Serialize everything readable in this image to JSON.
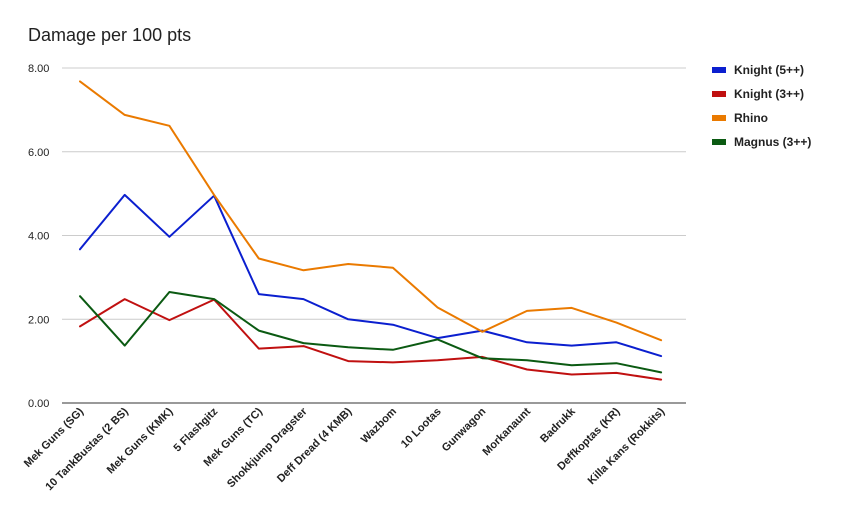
{
  "chart_data": {
    "type": "line",
    "title": "Damage per 100 pts",
    "xlabel": "",
    "ylabel": "",
    "ylim": [
      0,
      8
    ],
    "yticks": [
      "0.00",
      "2.00",
      "4.00",
      "6.00",
      "8.00"
    ],
    "ytick_values": [
      0,
      2,
      4,
      6,
      8
    ],
    "grid": true,
    "legend_position": "right",
    "categories": [
      "Mek Guns (SG)",
      "10 TankBustas (2 BS)",
      "Mek Guns (KMK)",
      "5 Flashgitz",
      "Mek Guns (TC)",
      "Shokkjump Dragster",
      "Deff Dread (4 KMB)",
      "Wazbom",
      "10 Lootas",
      "Gunwagon",
      "Morkanaunt",
      "Badrukk",
      "Deffkoptas (KR)",
      "Killa Kans (Rokkits)"
    ],
    "series": [
      {
        "name": "Knight (5++)",
        "color": "#0b1fcf",
        "values": [
          3.67,
          4.97,
          3.97,
          4.95,
          2.6,
          2.48,
          2.0,
          1.87,
          1.55,
          1.73,
          1.45,
          1.37,
          1.45,
          1.12
        ]
      },
      {
        "name": "Knight (3++)",
        "color": "#c01010",
        "values": [
          1.83,
          2.48,
          1.98,
          2.47,
          1.3,
          1.36,
          1.0,
          0.97,
          1.02,
          1.1,
          0.8,
          0.68,
          0.72,
          0.56
        ]
      },
      {
        "name": "Rhino",
        "color": "#ea7a00",
        "values": [
          7.68,
          6.88,
          6.62,
          4.97,
          3.45,
          3.17,
          3.32,
          3.23,
          2.28,
          1.7,
          2.2,
          2.27,
          1.92,
          1.5
        ]
      },
      {
        "name": "Magnus (3++)",
        "color": "#0b5a12",
        "values": [
          2.55,
          1.37,
          2.65,
          2.48,
          1.73,
          1.43,
          1.33,
          1.27,
          1.52,
          1.07,
          1.02,
          0.9,
          0.95,
          0.73
        ]
      }
    ]
  }
}
